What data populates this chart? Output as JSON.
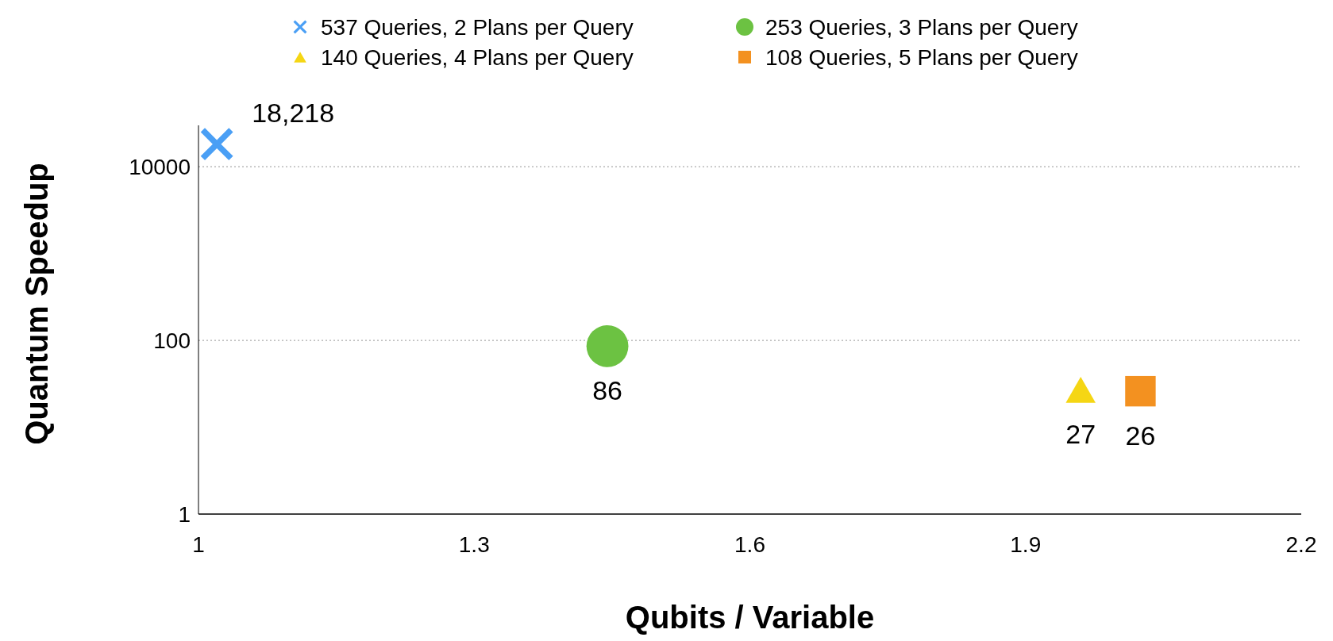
{
  "chart_data": {
    "type": "scatter",
    "xlabel": "Qubits / Variable",
    "ylabel": "Quantum Speedup",
    "log": "y",
    "grid": "y",
    "legend": "top",
    "xlim": [
      1,
      2.2
    ],
    "xticks": [
      1,
      1.3,
      1.6,
      1.9,
      2.2
    ],
    "ylim": [
      1,
      30000
    ],
    "yticks": [
      1,
      100,
      10000
    ],
    "series": [
      {
        "name": "537 Queries, 2 Plans per Query",
        "color": "#4a9ff5",
        "marker": "cross",
        "x": [
          1.02
        ],
        "values": [
          18218
        ],
        "value_labels": [
          "18,218"
        ]
      },
      {
        "name": "253 Queries, 3 Plans per Query",
        "color": "#6cc242",
        "marker": "circle",
        "x": [
          1.445
        ],
        "values": [
          86
        ],
        "value_labels": [
          "86"
        ]
      },
      {
        "name": "140 Queries, 4 Plans per Query",
        "color": "#f5d614",
        "marker": "triangle",
        "x": [
          1.96
        ],
        "values": [
          27
        ],
        "value_labels": [
          "27"
        ]
      },
      {
        "name": "108 Queries, 5 Plans per Query",
        "color": "#f39120",
        "marker": "square",
        "x": [
          2.025
        ],
        "values": [
          26
        ],
        "value_labels": [
          "26"
        ]
      }
    ]
  }
}
